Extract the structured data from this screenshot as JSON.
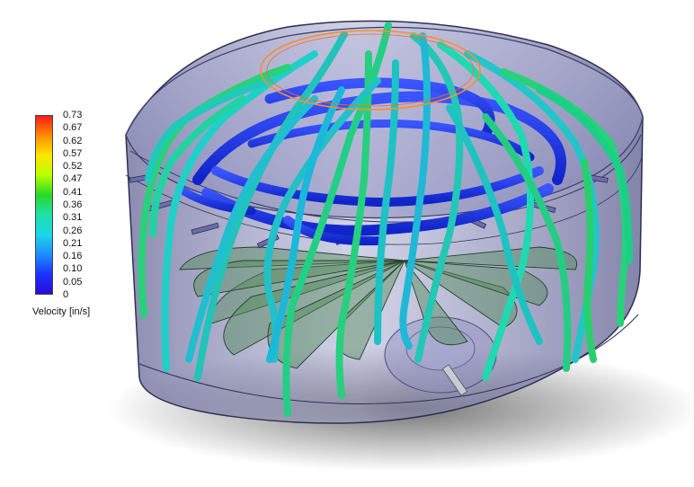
{
  "legend": {
    "title": "Velocity [in/s]",
    "ticks": [
      "0.73",
      "0.67",
      "0.62",
      "0.57",
      "0.52",
      "0.47",
      "0.41",
      "0.36",
      "0.31",
      "0.26",
      "0.21",
      "0.16",
      "0.10",
      "0.05",
      "0"
    ],
    "colormap": [
      "#ff1a1a",
      "#ff8c00",
      "#ffe600",
      "#b9ff00",
      "#26d926",
      "#1fe0a8",
      "#19d7e6",
      "#1f8fff",
      "#1a33ff",
      "#2a0ad6"
    ]
  },
  "scene_colors": {
    "housing": "#6c6ea6",
    "blades": "#4f8a57",
    "rim_ring": "#ff8c2a"
  }
}
